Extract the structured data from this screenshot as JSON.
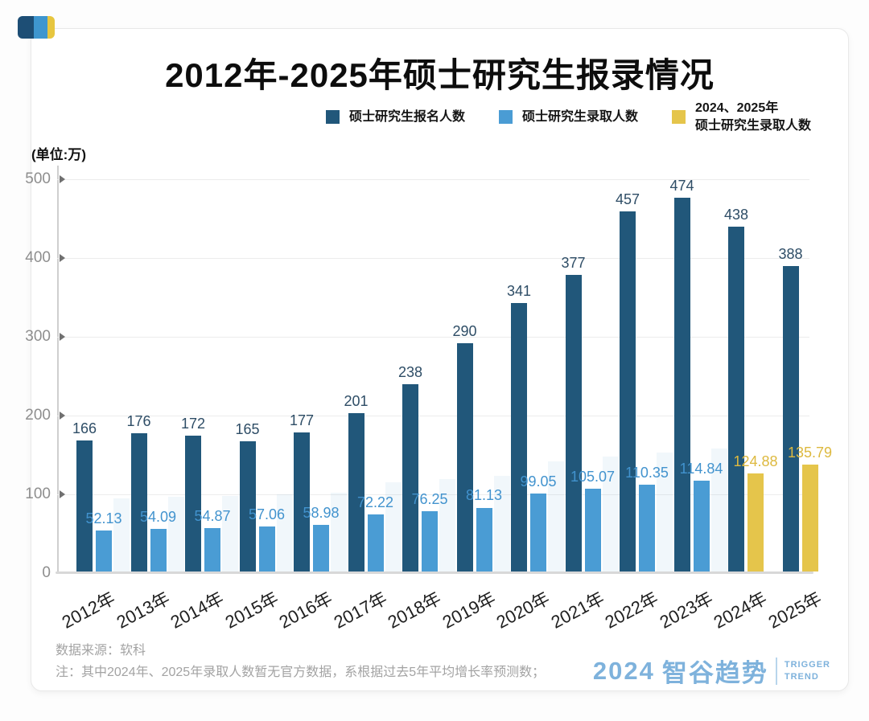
{
  "header": {
    "title": "2012年-2025年硕士研究生报录情况",
    "unit_label": "(单位:万)"
  },
  "legend": [
    {
      "label_lines": [
        "硕士研究生报名人数"
      ],
      "color": "#21577A"
    },
    {
      "label_lines": [
        "硕士研究生录取人数"
      ],
      "color": "#4A9CD4"
    },
    {
      "label_lines": [
        "2024、2025年",
        "硕士研究生录取人数"
      ],
      "color": "#E5C54B"
    }
  ],
  "chart_data": {
    "type": "bar",
    "categories": [
      "2012年",
      "2013年",
      "2014年",
      "2015年",
      "2016年",
      "2017年",
      "2018年",
      "2019年",
      "2020年",
      "2021年",
      "2022年",
      "2023年",
      "2024年",
      "2025年"
    ],
    "series": [
      {
        "name": "硕士研究生报名人数",
        "color": "#21577A",
        "label_color": "#2E4D66",
        "values": [
          166,
          176,
          172,
          165,
          177,
          201,
          238,
          290,
          341,
          377,
          457,
          474,
          438,
          388
        ]
      },
      {
        "name": "硕士研究生录取人数",
        "color": "#4A9CD4",
        "label_color": "#4293CE",
        "predicted_color": "#E5C54B",
        "predicted_label_color": "#DDB93F",
        "predicted_indices": [
          12,
          13
        ],
        "values": [
          52.13,
          54.09,
          54.87,
          57.06,
          58.98,
          72.22,
          76.25,
          81.13,
          99.05,
          105.07,
          110.35,
          114.84,
          124.88,
          135.79
        ]
      }
    ],
    "title": "2012年-2025年硕士研究生报录情况",
    "xlabel": "",
    "ylabel": "(单位:万)",
    "ylim": [
      0,
      500
    ],
    "yticks": [
      0,
      100,
      200,
      300,
      400,
      500
    ],
    "grid": true,
    "legend_position": "top"
  },
  "footer": {
    "source": "数据来源：软科",
    "note": "注：其中2024年、2025年录取人数暂无官方数据，系根据过去5年平均增长率预测数；",
    "brand_year": "2024",
    "brand_name": "智谷趋势",
    "brand_en_line1": "TRIGGER",
    "brand_en_line2": "TREND",
    "brand_color": "#7EB2DC"
  },
  "corner_logo_colors": [
    "#1D4E75",
    "#3E96CF",
    "#E7C63F"
  ]
}
